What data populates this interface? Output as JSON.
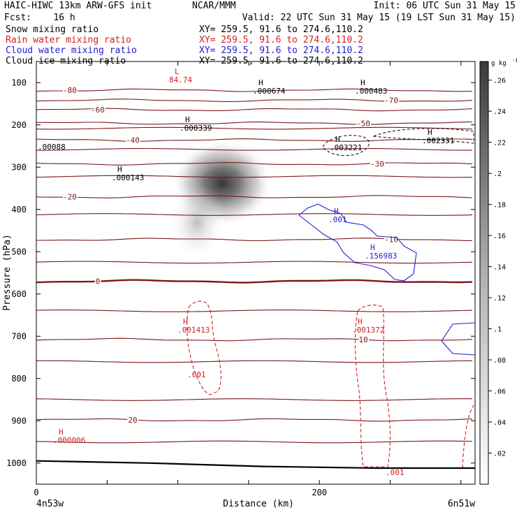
{
  "header": {
    "line1_left": "HAIC-HIWC 13km ARW-GFS init",
    "line1_mid": "NCAR/MMM",
    "line1_right": "Init: 06 UTC Sun 31 May 15",
    "line2_left": "Fcst:    16 h",
    "line2_right": "Valid: 22 UTC Sun 31 May 15 (19 LST Sun 31 May 15)",
    "fields": [
      {
        "label": "Snow mixing ratio",
        "xy": "XY= 259.5, 91.6 to 274.6,110.2",
        "color": "#000000"
      },
      {
        "label": "Rain water mixing ratio",
        "xy": "XY= 259.5, 91.6 to 274.6,110.2",
        "color": "#d42020"
      },
      {
        "label": "Cloud water mixing ratio",
        "xy": "XY= 259.5, 91.6 to 274.6,110.2",
        "color": "#1f1fd0"
      },
      {
        "label": "Cloud ice mixing ratio",
        "xy": "XY= 259.5, 91.6 to 274.6,110.2",
        "color": "#000000"
      }
    ]
  },
  "chart_data": {
    "type": "contour",
    "xlabel": "Distance (km)",
    "ylabel": "Pressure (hPa)",
    "xlim": [
      0,
      310
    ],
    "ylim": [
      1050,
      50
    ],
    "x_ticks": [
      0,
      200
    ],
    "y_ticks": [
      100,
      200,
      300,
      400,
      500,
      600,
      700,
      800,
      900,
      1000
    ],
    "x_endpoints": {
      "left": "4n53w",
      "right": "6n51w"
    },
    "temperature_contours": [
      {
        "label": "-80",
        "p": 118
      },
      {
        "label": "-70",
        "p": 142
      },
      {
        "label": "-60",
        "p": 164
      },
      {
        "label": "-50",
        "p": 196
      },
      {
        "label": "-40",
        "p": 236
      },
      {
        "label": "-30",
        "p": 292
      },
      {
        "label": "-20",
        "p": 370
      },
      {
        "label": "-10",
        "p": 471
      },
      {
        "label": "0",
        "p": 570
      },
      {
        "label": "10",
        "p": 708
      },
      {
        "label": "20",
        "p": 898
      }
    ],
    "extrema_labels": [
      {
        "letter": "L",
        "value": "84.74",
        "color": "#d42020"
      },
      {
        "letter": "H",
        "value": ".000674",
        "color": "#000000"
      },
      {
        "letter": "H",
        "value": ".000483",
        "color": "#000000"
      },
      {
        "letter": "H",
        "value": ".000339",
        "color": "#000000"
      },
      {
        "letter": "H",
        "value": ".003221",
        "color": "#000000"
      },
      {
        "letter": "H",
        "value": ".002331",
        "color": "#000000"
      },
      {
        "letter": "",
        "value": ".00088",
        "color": "#000000"
      },
      {
        "letter": "H",
        "value": ".000143",
        "color": "#000000"
      },
      {
        "letter": "H",
        "value": ".001",
        "color": "#1f1fd0"
      },
      {
        "letter": "H",
        "value": ".156983",
        "color": "#1f1fd0"
      },
      {
        "letter": "H",
        "value": ".001413",
        "color": "#d42020"
      },
      {
        "letter": "",
        "value": ".001",
        "color": "#d42020"
      },
      {
        "letter": "H",
        "value": ".001372",
        "color": "#d42020"
      },
      {
        "letter": "H",
        "value": ".000006",
        "color": "#d42020"
      },
      {
        "letter": "",
        "value": ".001",
        "color": "#d42020"
      }
    ],
    "surface_pressure_profile": {
      "x": [
        0,
        80,
        160,
        240,
        310
      ],
      "p": [
        995,
        1000,
        1008,
        1012,
        1012
      ]
    },
    "colorbar": {
      "unit_label": "g kg",
      "ticks": [
        ".02",
        ".04",
        ".06",
        ".08",
        ".1",
        ".12",
        ".14",
        ".16",
        ".18",
        ".2",
        ".22",
        ".24",
        ".26"
      ]
    }
  }
}
